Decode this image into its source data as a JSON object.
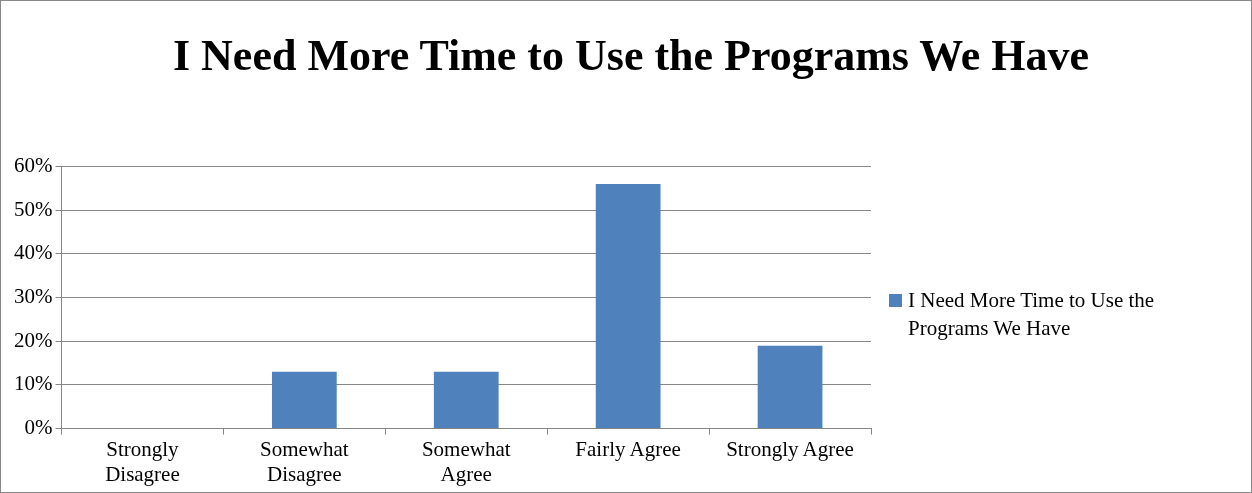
{
  "chart_data": {
    "type": "bar",
    "title": "I Need More Time to Use the Programs We Have",
    "categories": [
      "Strongly Disagree",
      "Somewhat Disagree",
      "Somewhat Agree",
      "Fairly Agree",
      "Strongly Agree"
    ],
    "series": [
      {
        "name": "I Need More Time to Use the Programs We Have",
        "color": "#4f81bd",
        "values": [
          0,
          13,
          13,
          56,
          19
        ]
      }
    ],
    "ylim": [
      0,
      60
    ],
    "yticks": [
      {
        "value": 0,
        "label": "0%"
      },
      {
        "value": 10,
        "label": "10%"
      },
      {
        "value": 20,
        "label": "20%"
      },
      {
        "value": 30,
        "label": "30%"
      },
      {
        "value": 40,
        "label": "40%"
      },
      {
        "value": 50,
        "label": "50%"
      },
      {
        "value": 60,
        "label": "60%"
      }
    ],
    "grid": "y",
    "legend": "right"
  }
}
